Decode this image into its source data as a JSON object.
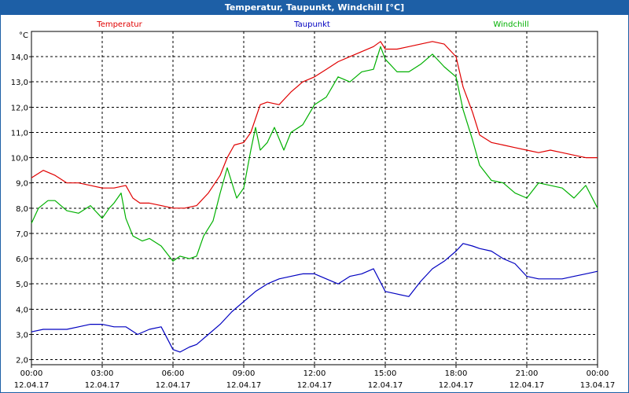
{
  "window": {
    "title": "Temperatur, Taupunkt, Windchill [°C]"
  },
  "chart_data": {
    "type": "line",
    "title": "Temperatur, Taupunkt, Windchill [°C]",
    "ylabel": "°C",
    "xlabel": "",
    "ylim": [
      1.8,
      15.0
    ],
    "yticks": [
      "2,0",
      "3,0",
      "4,0",
      "5,0",
      "6,0",
      "7,0",
      "8,0",
      "9,0",
      "10,0",
      "11,0",
      "12,0",
      "13,0",
      "14,0"
    ],
    "ytick_values": [
      2,
      3,
      4,
      5,
      6,
      7,
      8,
      9,
      10,
      11,
      12,
      13,
      14
    ],
    "xlim_hours": [
      0,
      24
    ],
    "xticks": [
      {
        "time": "00:00",
        "date": "12.04.17",
        "hour": 0
      },
      {
        "time": "03:00",
        "date": "12.04.17",
        "hour": 3
      },
      {
        "time": "06:00",
        "date": "12.04.17",
        "hour": 6
      },
      {
        "time": "09:00",
        "date": "12.04.17",
        "hour": 9
      },
      {
        "time": "12:00",
        "date": "12.04.17",
        "hour": 12
      },
      {
        "time": "15:00",
        "date": "12.04.17",
        "hour": 15
      },
      {
        "time": "18:00",
        "date": "12.04.17",
        "hour": 18
      },
      {
        "time": "21:00",
        "date": "12.04.17",
        "hour": 21
      },
      {
        "time": "00:00",
        "date": "13.04.17",
        "hour": 24
      }
    ],
    "grid": true,
    "series": [
      {
        "name": "Temperatur",
        "color": "#e00000",
        "points": [
          [
            0,
            9.2
          ],
          [
            0.5,
            9.5
          ],
          [
            1,
            9.3
          ],
          [
            1.5,
            9.0
          ],
          [
            2,
            9.0
          ],
          [
            2.5,
            8.9
          ],
          [
            3,
            8.8
          ],
          [
            3.5,
            8.8
          ],
          [
            4,
            8.9
          ],
          [
            4.3,
            8.4
          ],
          [
            4.6,
            8.2
          ],
          [
            5,
            8.2
          ],
          [
            5.5,
            8.1
          ],
          [
            6,
            8.0
          ],
          [
            6.5,
            8.0
          ],
          [
            7,
            8.1
          ],
          [
            7.5,
            8.6
          ],
          [
            8,
            9.3
          ],
          [
            8.3,
            10.0
          ],
          [
            8.6,
            10.5
          ],
          [
            9,
            10.6
          ],
          [
            9.3,
            11.0
          ],
          [
            9.7,
            12.1
          ],
          [
            10,
            12.2
          ],
          [
            10.5,
            12.1
          ],
          [
            11,
            12.6
          ],
          [
            11.5,
            13.0
          ],
          [
            12,
            13.2
          ],
          [
            12.5,
            13.5
          ],
          [
            13,
            13.8
          ],
          [
            13.5,
            14.0
          ],
          [
            14,
            14.2
          ],
          [
            14.5,
            14.4
          ],
          [
            14.8,
            14.6
          ],
          [
            15,
            14.3
          ],
          [
            15.5,
            14.3
          ],
          [
            16,
            14.4
          ],
          [
            16.5,
            14.5
          ],
          [
            17,
            14.6
          ],
          [
            17.5,
            14.5
          ],
          [
            18,
            14.0
          ],
          [
            18.3,
            12.8
          ],
          [
            18.7,
            11.8
          ],
          [
            19,
            10.9
          ],
          [
            19.5,
            10.6
          ],
          [
            20,
            10.5
          ],
          [
            20.5,
            10.4
          ],
          [
            21,
            10.3
          ],
          [
            21.5,
            10.2
          ],
          [
            22,
            10.3
          ],
          [
            22.5,
            10.2
          ],
          [
            23,
            10.1
          ],
          [
            23.5,
            10.0
          ],
          [
            24,
            10.0
          ]
        ]
      },
      {
        "name": "Taupunkt",
        "color": "#0000c0",
        "points": [
          [
            0,
            3.1
          ],
          [
            0.5,
            3.2
          ],
          [
            1,
            3.2
          ],
          [
            1.5,
            3.2
          ],
          [
            2,
            3.3
          ],
          [
            2.5,
            3.4
          ],
          [
            3,
            3.4
          ],
          [
            3.5,
            3.3
          ],
          [
            4,
            3.3
          ],
          [
            4.5,
            3.0
          ],
          [
            5,
            3.2
          ],
          [
            5.5,
            3.3
          ],
          [
            6,
            2.4
          ],
          [
            6.3,
            2.3
          ],
          [
            6.7,
            2.5
          ],
          [
            7,
            2.6
          ],
          [
            7.5,
            3.0
          ],
          [
            8,
            3.4
          ],
          [
            8.5,
            3.9
          ],
          [
            9,
            4.3
          ],
          [
            9.5,
            4.7
          ],
          [
            10,
            5.0
          ],
          [
            10.5,
            5.2
          ],
          [
            11,
            5.3
          ],
          [
            11.5,
            5.4
          ],
          [
            12,
            5.4
          ],
          [
            12.5,
            5.2
          ],
          [
            13,
            5.0
          ],
          [
            13.5,
            5.3
          ],
          [
            14,
            5.4
          ],
          [
            14.5,
            5.6
          ],
          [
            15,
            4.7
          ],
          [
            15.5,
            4.6
          ],
          [
            16,
            4.5
          ],
          [
            16.5,
            5.1
          ],
          [
            17,
            5.6
          ],
          [
            17.5,
            5.9
          ],
          [
            18,
            6.3
          ],
          [
            18.3,
            6.6
          ],
          [
            18.7,
            6.5
          ],
          [
            19,
            6.4
          ],
          [
            19.5,
            6.3
          ],
          [
            20,
            6.0
          ],
          [
            20.5,
            5.8
          ],
          [
            21,
            5.3
          ],
          [
            21.5,
            5.2
          ],
          [
            22,
            5.2
          ],
          [
            22.5,
            5.2
          ],
          [
            23,
            5.3
          ],
          [
            23.5,
            5.4
          ],
          [
            24,
            5.5
          ]
        ]
      },
      {
        "name": "Windchill",
        "color": "#00b000",
        "points": [
          [
            0,
            7.4
          ],
          [
            0.3,
            8.0
          ],
          [
            0.7,
            8.3
          ],
          [
            1,
            8.3
          ],
          [
            1.5,
            7.9
          ],
          [
            2,
            7.8
          ],
          [
            2.5,
            8.1
          ],
          [
            3,
            7.6
          ],
          [
            3.3,
            8.0
          ],
          [
            3.5,
            8.2
          ],
          [
            3.8,
            8.6
          ],
          [
            4,
            7.6
          ],
          [
            4.3,
            6.9
          ],
          [
            4.7,
            6.7
          ],
          [
            5,
            6.8
          ],
          [
            5.5,
            6.5
          ],
          [
            6,
            5.9
          ],
          [
            6.3,
            6.1
          ],
          [
            6.7,
            6.0
          ],
          [
            7,
            6.1
          ],
          [
            7.3,
            6.9
          ],
          [
            7.7,
            7.5
          ],
          [
            8,
            8.6
          ],
          [
            8.3,
            9.6
          ],
          [
            8.7,
            8.4
          ],
          [
            9,
            8.8
          ],
          [
            9.3,
            10.3
          ],
          [
            9.5,
            11.2
          ],
          [
            9.7,
            10.3
          ],
          [
            10,
            10.6
          ],
          [
            10.3,
            11.2
          ],
          [
            10.7,
            10.3
          ],
          [
            11,
            11.0
          ],
          [
            11.5,
            11.3
          ],
          [
            12,
            12.1
          ],
          [
            12.5,
            12.4
          ],
          [
            13,
            13.2
          ],
          [
            13.5,
            13.0
          ],
          [
            14,
            13.4
          ],
          [
            14.5,
            13.5
          ],
          [
            14.8,
            14.4
          ],
          [
            15,
            13.9
          ],
          [
            15.5,
            13.4
          ],
          [
            16,
            13.4
          ],
          [
            16.5,
            13.7
          ],
          [
            17,
            14.1
          ],
          [
            17.5,
            13.6
          ],
          [
            18,
            13.2
          ],
          [
            18.3,
            11.9
          ],
          [
            18.7,
            10.7
          ],
          [
            19,
            9.7
          ],
          [
            19.5,
            9.1
          ],
          [
            20,
            9.0
          ],
          [
            20.5,
            8.6
          ],
          [
            21,
            8.4
          ],
          [
            21.5,
            9.0
          ],
          [
            22,
            8.9
          ],
          [
            22.5,
            8.8
          ],
          [
            23,
            8.4
          ],
          [
            23.5,
            8.9
          ],
          [
            24,
            8.0
          ]
        ]
      }
    ]
  }
}
